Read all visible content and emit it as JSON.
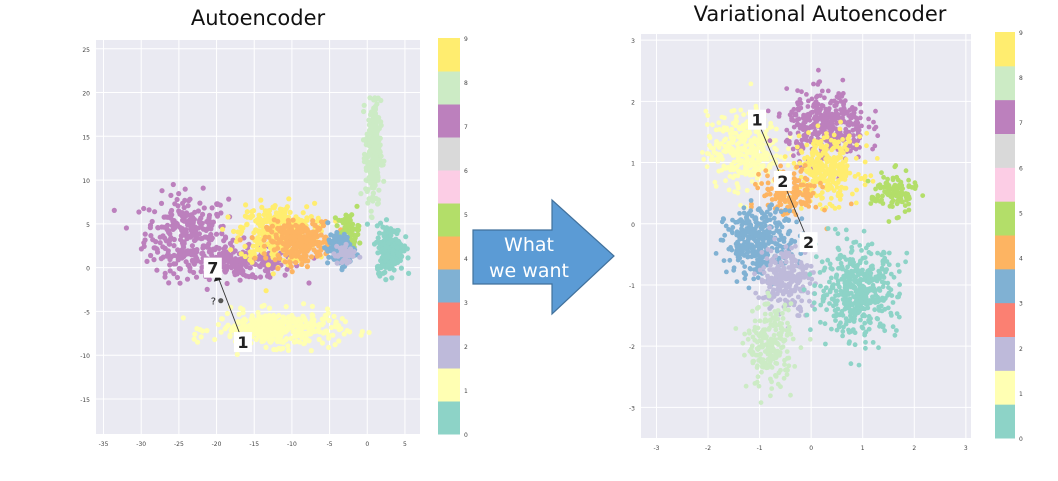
{
  "titles": {
    "left": "Autoencoder",
    "right": "Variational Autoencoder"
  },
  "arrow": {
    "line1": "What",
    "line2": "we want",
    "color": "#5b9bd5"
  },
  "colors": {
    "plot_bg": "#eaeaf2",
    "grid": "#ffffff",
    "digit_palette": [
      "#8dd3c7",
      "#ffffb3",
      "#bebada",
      "#fb8072",
      "#80b1d3",
      "#fdb462",
      "#b3de69",
      "#fccde5",
      "#d9d9d9",
      "#bc80bd",
      "#ccebc5",
      "#ffed6f"
    ]
  },
  "chart_data": [
    {
      "type": "scatter",
      "title": "Autoencoder",
      "xlim": [
        -36,
        7
      ],
      "ylim": [
        -19,
        26
      ],
      "xticks": [
        "-35",
        "-30",
        "-25",
        "-20",
        "-15",
        "-10",
        "-5",
        "0",
        "5"
      ],
      "yticks": [
        "-15",
        "-10",
        "-5",
        "0",
        "5",
        "10",
        "15",
        "20",
        "25"
      ],
      "grid": true,
      "colorbar": {
        "range": [
          0,
          9
        ],
        "ticks": [
          "0",
          "1",
          "2",
          "3",
          "4",
          "5",
          "6",
          "7",
          "8",
          "9"
        ]
      },
      "clusters": [
        {
          "digit": 7,
          "center": [
            -24,
            4
          ],
          "spread": [
            5.0,
            4.0
          ],
          "count": 260
        },
        {
          "digit": 7,
          "center": [
            -17,
            0.5
          ],
          "spread": [
            7.5,
            1.6
          ],
          "count": 240
        },
        {
          "digit": 9,
          "center": [
            -12,
            4
          ],
          "spread": [
            4.5,
            3.0
          ],
          "count": 330
        },
        {
          "digit": 4,
          "center": [
            -9,
            3
          ],
          "spread": [
            3.8,
            2.0
          ],
          "count": 280
        },
        {
          "digit": 1,
          "center": [
            -12,
            -7
          ],
          "spread": [
            7.5,
            1.8
          ],
          "count": 380
        },
        {
          "digit": 8,
          "center": [
            0.8,
            13
          ],
          "spread": [
            0.9,
            5.5
          ],
          "count": 240
        },
        {
          "digit": 0,
          "center": [
            3,
            2.2
          ],
          "spread": [
            1.6,
            2.4
          ],
          "count": 230
        },
        {
          "digit": 5,
          "center": [
            -2.5,
            4
          ],
          "spread": [
            1.3,
            2.0
          ],
          "count": 70
        },
        {
          "digit": 3,
          "center": [
            -3.5,
            2
          ],
          "spread": [
            1.6,
            1.6
          ],
          "count": 110
        },
        {
          "digit": 2,
          "center": [
            -3,
            1.5
          ],
          "spread": [
            1.3,
            1.3
          ],
          "count": 40
        }
      ],
      "annotations": [
        {
          "label": "7",
          "kind": "digit-image",
          "at": [
            -20.5,
            0
          ]
        },
        {
          "label": "1",
          "kind": "digit-image",
          "at": [
            -16.5,
            -8.5
          ]
        },
        {
          "label": "?",
          "kind": "text",
          "at": [
            -20.5,
            -4
          ]
        }
      ]
    },
    {
      "type": "scatter",
      "title": "Variational Autoencoder",
      "xlim": [
        -3.3,
        3.1
      ],
      "ylim": [
        -3.5,
        3.1
      ],
      "xticks": [
        "-3",
        "-2",
        "-1",
        "0",
        "1",
        "2",
        "3"
      ],
      "yticks": [
        "-3",
        "-2",
        "-1",
        "0",
        "1",
        "2",
        "3"
      ],
      "grid": true,
      "colorbar": {
        "range": [
          0,
          9
        ],
        "ticks": [
          "0",
          "1",
          "2",
          "3",
          "4",
          "5",
          "6",
          "7",
          "8",
          "9"
        ]
      },
      "clusters": [
        {
          "digit": 1,
          "center": [
            -1.3,
            1.2
          ],
          "spread": [
            0.65,
            0.55
          ],
          "count": 340
        },
        {
          "digit": 7,
          "center": [
            0.3,
            1.6
          ],
          "spread": [
            0.7,
            0.5
          ],
          "count": 380
        },
        {
          "digit": 9,
          "center": [
            0.3,
            0.9
          ],
          "spread": [
            0.6,
            0.5
          ],
          "count": 300
        },
        {
          "digit": 4,
          "center": [
            -0.4,
            0.5
          ],
          "spread": [
            0.5,
            0.35
          ],
          "count": 150
        },
        {
          "digit": 5,
          "center": [
            1.6,
            0.5
          ],
          "spread": [
            0.4,
            0.3
          ],
          "count": 120
        },
        {
          "digit": 3,
          "center": [
            -1.0,
            -0.3
          ],
          "spread": [
            0.6,
            0.5
          ],
          "count": 340
        },
        {
          "digit": 2,
          "center": [
            -0.5,
            -0.9
          ],
          "spread": [
            0.45,
            0.5
          ],
          "count": 240
        },
        {
          "digit": 0,
          "center": [
            0.9,
            -1.1
          ],
          "spread": [
            0.7,
            0.65
          ],
          "count": 460
        },
        {
          "digit": 8,
          "center": [
            -0.8,
            -2.0
          ],
          "spread": [
            0.4,
            0.6
          ],
          "count": 220
        }
      ],
      "annotations": [
        {
          "label": "1",
          "kind": "digit-image",
          "at": [
            -1.05,
            1.7
          ]
        },
        {
          "label": "2",
          "kind": "digit-image",
          "at": [
            -0.55,
            0.7
          ]
        },
        {
          "label": "2",
          "kind": "digit-image",
          "at": [
            -0.05,
            -0.3
          ]
        }
      ]
    }
  ]
}
